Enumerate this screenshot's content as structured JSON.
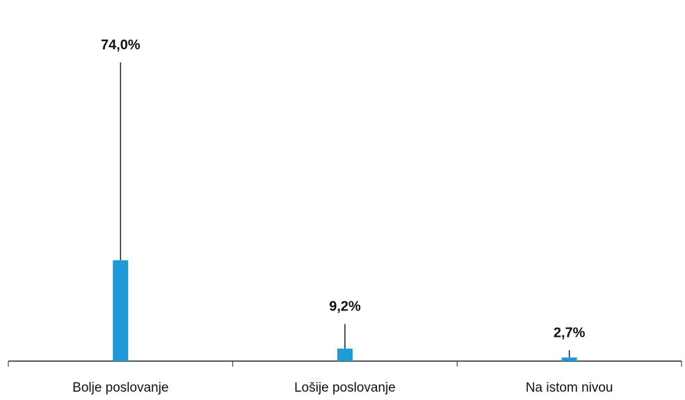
{
  "chart_data": {
    "type": "bar",
    "categories": [
      "Bolje poslovanje",
      "Lošije poslovanje",
      "Na istom nivou"
    ],
    "values": [
      74.0,
      9.2,
      2.7
    ],
    "bar_values": [
      25.0,
      3.1,
      0.9
    ],
    "value_labels": [
      "74,0%",
      "9,2%",
      "2,7%"
    ],
    "ylim": [
      0,
      80
    ],
    "bar_color": "#1f9ad6",
    "line_color": "#0b2236",
    "axis_color": "#222222"
  }
}
